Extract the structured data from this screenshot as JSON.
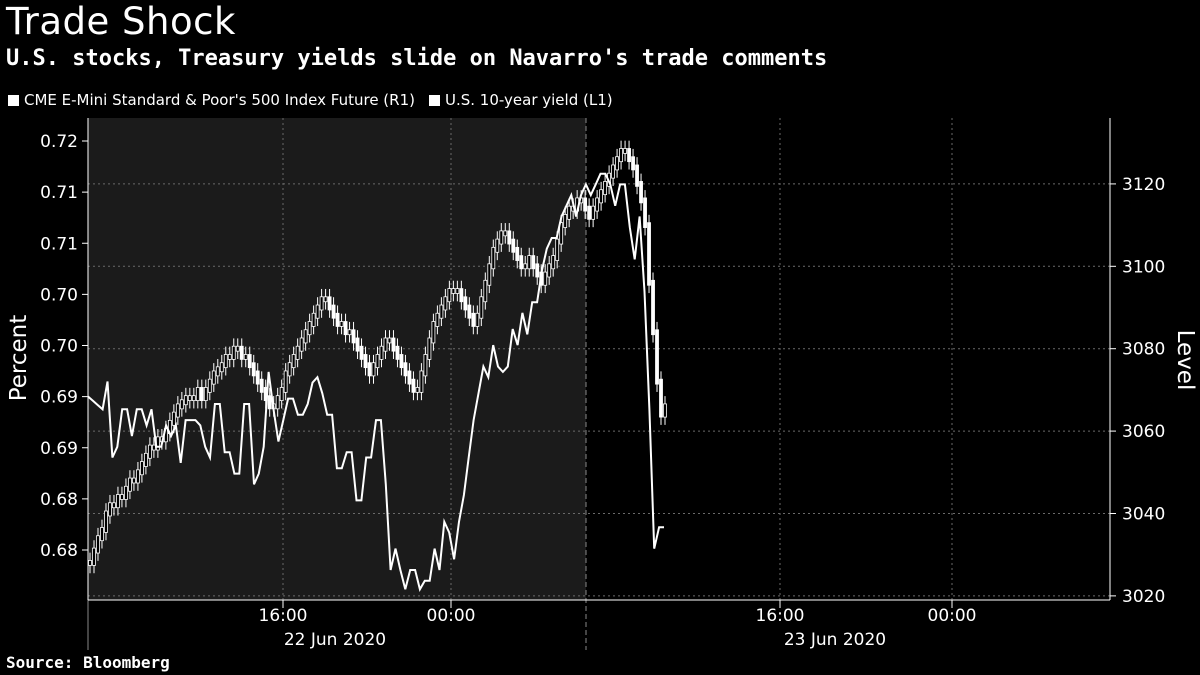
{
  "chart_data": {
    "type": "line",
    "title": "Trade Shock",
    "subtitle": "U.S. stocks, Treasury yields slide on Navarro's trade comments",
    "source": "Source: Bloomberg",
    "legend": [
      {
        "name": "CME E-Mini Standard & Poor's 500 Index Future (R1)",
        "color": "#ffffff"
      },
      {
        "name": "U.S. 10-year yield (L1)",
        "color": "#ffffff"
      }
    ],
    "left_axis": {
      "label": "Percent",
      "tick_labels": [
        "0.72",
        "0.71",
        "0.71",
        "0.70",
        "0.70",
        "0.69",
        "0.69",
        "0.68",
        "0.68"
      ],
      "range": [
        0.6775,
        0.7225
      ]
    },
    "right_axis": {
      "label": "Level",
      "tick_labels": [
        "3120",
        "3100",
        "3080",
        "3060",
        "3040",
        "3020"
      ],
      "ticks": [
        3120,
        3100,
        3080,
        3060,
        3040,
        3020
      ],
      "range": [
        3019,
        3136
      ]
    },
    "x_axis": {
      "tick_labels": [
        "16:00",
        "00:00",
        "16:00",
        "00:00"
      ],
      "date_labels": [
        "22 Jun 2020",
        "23 Jun 2020"
      ]
    },
    "grid": true,
    "shaded_region": "22 Jun 2020 session",
    "series": [
      {
        "name": "U.S. 10-year yield (L1)",
        "style": "line",
        "values": [
          0.6965,
          0.6961,
          0.6957,
          0.6953,
          0.6979,
          0.6908,
          0.6918,
          0.6953,
          0.6953,
          0.6928,
          0.6953,
          0.6953,
          0.6938,
          0.6953,
          0.6918,
          0.6918,
          0.6938,
          0.6928,
          0.6938,
          0.6903,
          0.6943,
          0.6943,
          0.6943,
          0.6938,
          0.6918,
          0.6908,
          0.6958,
          0.6958,
          0.6913,
          0.6913,
          0.6893,
          0.6893,
          0.6958,
          0.6958,
          0.6883,
          0.6893,
          0.6918,
          0.6988,
          0.6953,
          0.6923,
          0.6943,
          0.6963,
          0.6963,
          0.6948,
          0.6948,
          0.6958,
          0.6978,
          0.6983,
          0.6968,
          0.6948,
          0.6948,
          0.6898,
          0.6898,
          0.6913,
          0.6913,
          0.6868,
          0.6868,
          0.6908,
          0.6908,
          0.6943,
          0.6943,
          0.6883,
          0.6803,
          0.6823,
          0.6803,
          0.6785,
          0.6803,
          0.6803,
          0.6785,
          0.6793,
          0.6793,
          0.6823,
          0.6803,
          0.6848,
          0.6838,
          0.6813,
          0.6848,
          0.6873,
          0.6908,
          0.6943,
          0.6968,
          0.6993,
          0.6983,
          0.7013,
          0.6993,
          0.6988,
          0.6993,
          0.7028,
          0.7013,
          0.7043,
          0.7023,
          0.7053,
          0.7053,
          0.7083,
          0.7103,
          0.7113,
          0.7113,
          0.7133,
          0.7143,
          0.7153,
          0.7133,
          0.7153,
          0.7163,
          0.7153,
          0.7163,
          0.7173,
          0.7173,
          0.7163,
          0.7143,
          0.7163,
          0.7163,
          0.7123,
          0.7093,
          0.7133,
          0.7063,
          0.6953,
          0.6823,
          0.6843,
          0.6843
        ]
      },
      {
        "name": "CME E-Mini Standard & Poor's 500 Index Future (R1)",
        "style": "candlestick",
        "values": [
          3028,
          3031,
          3034,
          3036,
          3040,
          3042,
          3042,
          3044,
          3044,
          3046,
          3048,
          3048,
          3050,
          3052,
          3054,
          3056,
          3056,
          3058,
          3058,
          3060,
          3062,
          3064,
          3066,
          3067,
          3068,
          3068,
          3068,
          3070,
          3068,
          3070,
          3072,
          3074,
          3075,
          3076,
          3078,
          3078,
          3080,
          3080,
          3078,
          3078,
          3076,
          3074,
          3072,
          3070,
          3068,
          3066,
          3066,
          3068,
          3070,
          3074,
          3076,
          3078,
          3080,
          3082,
          3084,
          3086,
          3088,
          3090,
          3092,
          3092,
          3090,
          3088,
          3086,
          3086,
          3084,
          3084,
          3082,
          3080,
          3078,
          3076,
          3074,
          3076,
          3078,
          3080,
          3082,
          3082,
          3080,
          3078,
          3076,
          3074,
          3072,
          3070,
          3070,
          3074,
          3078,
          3082,
          3086,
          3088,
          3090,
          3092,
          3094,
          3094,
          3094,
          3092,
          3090,
          3088,
          3086,
          3088,
          3092,
          3096,
          3100,
          3104,
          3106,
          3108,
          3108,
          3106,
          3104,
          3102,
          3100,
          3100,
          3102,
          3100,
          3098,
          3096,
          3098,
          3100,
          3102,
          3106,
          3110,
          3112,
          3114,
          3114,
          3116,
          3116,
          3114,
          3112,
          3114,
          3116,
          3118,
          3120,
          3122,
          3124,
          3126,
          3128,
          3128,
          3126,
          3124,
          3120,
          3116,
          3110,
          3096,
          3084,
          3072,
          3064,
          3066
        ]
      }
    ]
  }
}
